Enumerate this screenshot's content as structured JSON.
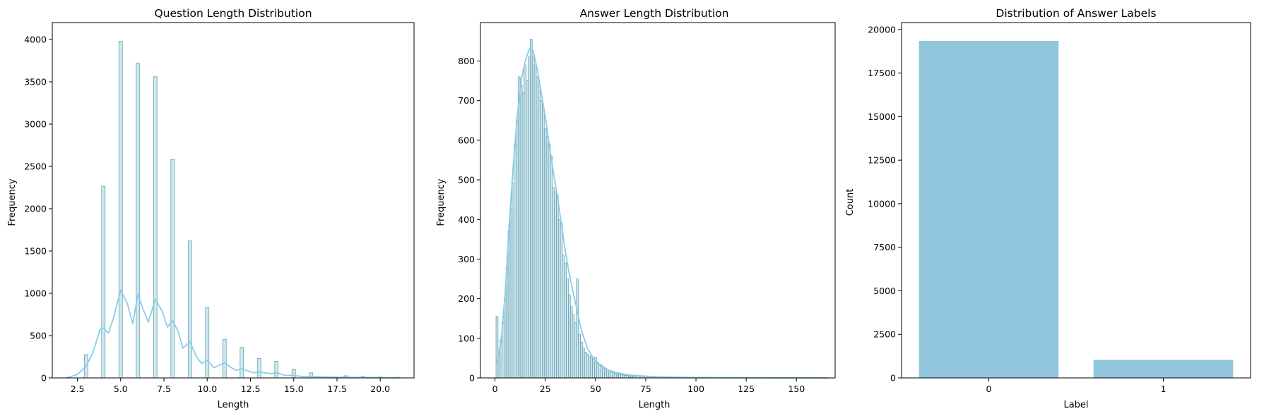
{
  "colors": {
    "bar_fill": "#add8e6",
    "bar_edge": "#6e9fae",
    "kde_line": "#87ceeb",
    "count_bar": "#92c6dc",
    "axis": "#000000"
  },
  "chart_data": [
    {
      "type": "histogram",
      "title": "Question Length Distribution",
      "xlabel": "Length",
      "ylabel": "Frequency",
      "xlim": [
        1.05,
        21.95
      ],
      "ylim": [
        0,
        4200
      ],
      "xticks": [
        2.5,
        5.0,
        7.5,
        10.0,
        12.5,
        15.0,
        17.5,
        20.0
      ],
      "xtick_labels": [
        "2.5",
        "5.0",
        "7.5",
        "10.0",
        "12.5",
        "15.0",
        "17.5",
        "20.0"
      ],
      "yticks": [
        0,
        500,
        1000,
        1500,
        2000,
        2500,
        3000,
        3500,
        4000
      ],
      "ytick_labels": [
        "0",
        "500",
        "1000",
        "1500",
        "2000",
        "2500",
        "3000",
        "3500",
        "4000"
      ],
      "bin_width": 0.2,
      "bins": [
        {
          "x": 2,
          "count": 5
        },
        {
          "x": 3,
          "count": 275
        },
        {
          "x": 4,
          "count": 2265
        },
        {
          "x": 5,
          "count": 3980
        },
        {
          "x": 6,
          "count": 3720
        },
        {
          "x": 7,
          "count": 3560
        },
        {
          "x": 8,
          "count": 2580
        },
        {
          "x": 9,
          "count": 1620
        },
        {
          "x": 10,
          "count": 830
        },
        {
          "x": 11,
          "count": 455
        },
        {
          "x": 12,
          "count": 360
        },
        {
          "x": 13,
          "count": 230
        },
        {
          "x": 14,
          "count": 195
        },
        {
          "x": 15,
          "count": 105
        },
        {
          "x": 16,
          "count": 60
        },
        {
          "x": 17,
          "count": 15
        },
        {
          "x": 18,
          "count": 25
        },
        {
          "x": 19,
          "count": 18
        },
        {
          "x": 20,
          "count": 12
        },
        {
          "x": 21,
          "count": 8
        }
      ],
      "kde": {
        "x": [
          2.0,
          2.5,
          3.0,
          3.4,
          3.8,
          4.0,
          4.3,
          4.6,
          5.0,
          5.4,
          5.7,
          6.0,
          6.3,
          6.6,
          7.0,
          7.4,
          7.7,
          8.0,
          8.3,
          8.6,
          9.0,
          9.4,
          9.7,
          10.0,
          10.4,
          10.7,
          11.0,
          11.4,
          11.7,
          12.0,
          12.4,
          12.7,
          13.0,
          13.4,
          13.7,
          14.0,
          14.5,
          15.0,
          15.5,
          16.0,
          17.0,
          18.0,
          19.0,
          20.0,
          21.0
        ],
        "y": [
          10,
          40,
          140,
          300,
          570,
          590,
          530,
          720,
          1040,
          870,
          640,
          990,
          810,
          660,
          930,
          790,
          600,
          680,
          560,
          350,
          430,
          240,
          170,
          210,
          120,
          150,
          180,
          120,
          90,
          110,
          80,
          60,
          70,
          60,
          50,
          60,
          30,
          30,
          15,
          15,
          10,
          8,
          5,
          4,
          2
        ]
      }
    },
    {
      "type": "histogram",
      "title": "Answer Length Distribution",
      "xlabel": "Length",
      "ylabel": "Frequency",
      "xlim": [
        -7.25,
        169.25
      ],
      "ylim": [
        0,
        897
      ],
      "xticks": [
        0,
        25,
        50,
        75,
        100,
        125,
        150
      ],
      "xtick_labels": [
        "0",
        "25",
        "50",
        "75",
        "100",
        "125",
        "150"
      ],
      "yticks": [
        0,
        100,
        200,
        300,
        400,
        500,
        600,
        700,
        800
      ],
      "ytick_labels": [
        "0",
        "100",
        "200",
        "300",
        "400",
        "500",
        "600",
        "700",
        "800"
      ],
      "bin_width": 1,
      "bins": [
        {
          "x": 1,
          "count": 155
        },
        {
          "x": 2,
          "count": 60
        },
        {
          "x": 3,
          "count": 95
        },
        {
          "x": 4,
          "count": 140
        },
        {
          "x": 5,
          "count": 200
        },
        {
          "x": 6,
          "count": 280
        },
        {
          "x": 7,
          "count": 370
        },
        {
          "x": 8,
          "count": 425
        },
        {
          "x": 9,
          "count": 490
        },
        {
          "x": 10,
          "count": 590
        },
        {
          "x": 11,
          "count": 650
        },
        {
          "x": 12,
          "count": 760
        },
        {
          "x": 13,
          "count": 740
        },
        {
          "x": 14,
          "count": 720
        },
        {
          "x": 15,
          "count": 790
        },
        {
          "x": 16,
          "count": 750
        },
        {
          "x": 17,
          "count": 810
        },
        {
          "x": 18,
          "count": 855
        },
        {
          "x": 19,
          "count": 810
        },
        {
          "x": 20,
          "count": 790
        },
        {
          "x": 21,
          "count": 760
        },
        {
          "x": 22,
          "count": 740
        },
        {
          "x": 23,
          "count": 700
        },
        {
          "x": 24,
          "count": 680
        },
        {
          "x": 25,
          "count": 630
        },
        {
          "x": 26,
          "count": 610
        },
        {
          "x": 27,
          "count": 590
        },
        {
          "x": 28,
          "count": 560
        },
        {
          "x": 29,
          "count": 480
        },
        {
          "x": 30,
          "count": 470
        },
        {
          "x": 31,
          "count": 460
        },
        {
          "x": 32,
          "count": 400
        },
        {
          "x": 33,
          "count": 390
        },
        {
          "x": 34,
          "count": 310
        },
        {
          "x": 35,
          "count": 290
        },
        {
          "x": 36,
          "count": 250
        },
        {
          "x": 37,
          "count": 210
        },
        {
          "x": 38,
          "count": 180
        },
        {
          "x": 39,
          "count": 160
        },
        {
          "x": 40,
          "count": 140
        },
        {
          "x": 41,
          "count": 250
        },
        {
          "x": 42,
          "count": 110
        },
        {
          "x": 43,
          "count": 90
        },
        {
          "x": 44,
          "count": 75
        },
        {
          "x": 45,
          "count": 65
        },
        {
          "x": 46,
          "count": 60
        },
        {
          "x": 47,
          "count": 55
        },
        {
          "x": 48,
          "count": 52
        },
        {
          "x": 49,
          "count": 48
        },
        {
          "x": 50,
          "count": 52
        },
        {
          "x": 51,
          "count": 40
        },
        {
          "x": 52,
          "count": 35
        },
        {
          "x": 53,
          "count": 32
        },
        {
          "x": 54,
          "count": 28
        },
        {
          "x": 55,
          "count": 24
        },
        {
          "x": 56,
          "count": 20
        },
        {
          "x": 57,
          "count": 18
        },
        {
          "x": 58,
          "count": 15
        },
        {
          "x": 59,
          "count": 13
        },
        {
          "x": 60,
          "count": 11
        },
        {
          "x": 61,
          "count": 10
        },
        {
          "x": 62,
          "count": 9
        },
        {
          "x": 63,
          "count": 8
        },
        {
          "x": 64,
          "count": 7
        },
        {
          "x": 65,
          "count": 6
        },
        {
          "x": 66,
          "count": 6
        },
        {
          "x": 67,
          "count": 5
        },
        {
          "x": 68,
          "count": 5
        },
        {
          "x": 69,
          "count": 4
        },
        {
          "x": 70,
          "count": 4
        },
        {
          "x": 72,
          "count": 3
        },
        {
          "x": 74,
          "count": 3
        },
        {
          "x": 76,
          "count": 2
        },
        {
          "x": 78,
          "count": 2
        },
        {
          "x": 80,
          "count": 2
        },
        {
          "x": 84,
          "count": 1
        },
        {
          "x": 88,
          "count": 1
        },
        {
          "x": 95,
          "count": 1
        },
        {
          "x": 105,
          "count": 1
        },
        {
          "x": 118,
          "count": 1
        }
      ],
      "kde": {
        "x": [
          1,
          3,
          5,
          7,
          9,
          11,
          13,
          15,
          17,
          18,
          19,
          21,
          23,
          25,
          27,
          29,
          31,
          33,
          35,
          37,
          40,
          43,
          46,
          50,
          55,
          60,
          65,
          70,
          80,
          90,
          100,
          120,
          140,
          160,
          166
        ],
        "y": [
          40,
          95,
          210,
          380,
          530,
          660,
          750,
          800,
          830,
          835,
          825,
          780,
          720,
          660,
          590,
          520,
          460,
          390,
          320,
          260,
          190,
          120,
          75,
          40,
          22,
          14,
          9,
          6,
          3,
          2,
          1,
          0.5,
          0.2,
          0.1,
          0
        ]
      }
    },
    {
      "type": "bar",
      "title": "Distribution of Answer Labels",
      "xlabel": "Label",
      "ylabel": "Count",
      "categories": [
        "0",
        "1"
      ],
      "values": [
        19350,
        1040
      ],
      "ylim": [
        0,
        20400
      ],
      "yticks": [
        0,
        2500,
        5000,
        7500,
        10000,
        12500,
        15000,
        17500,
        20000
      ],
      "ytick_labels": [
        "0",
        "2500",
        "5000",
        "7500",
        "10000",
        "12500",
        "15000",
        "17500",
        "20000"
      ]
    }
  ]
}
